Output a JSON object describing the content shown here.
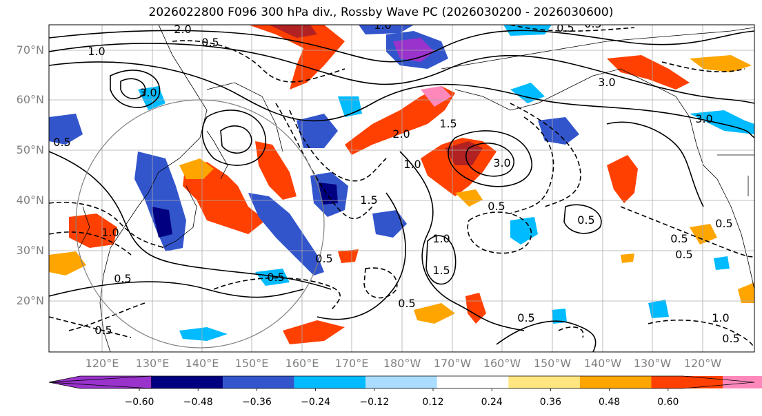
{
  "title": "2026022800 F096 300 hPa div., Rossby Wave PC (2026030200 - 2026030600)",
  "lat_labels": [
    "70°N",
    "60°N",
    "50°N",
    "40°N",
    "30°N",
    "20°N"
  ],
  "lon_labels": [
    "120°E",
    "130°E",
    "140°E",
    "150°E",
    "160°E",
    "170°E",
    "180°W",
    "170°W",
    "160°W",
    "150°W",
    "140°W",
    "130°W",
    "120°W"
  ],
  "colorbar": {
    "ticks": [
      "−0.60",
      "−0.48",
      "−0.36",
      "−0.24",
      "−0.12",
      "0.12",
      "0.24",
      "0.36",
      "0.48",
      "0.60"
    ],
    "colors": [
      "#9933cc",
      "#000080",
      "#3355cc",
      "#00bbff",
      "#aaddff",
      "#ffffff",
      "#ffe680",
      "#ffa500",
      "#ff4000",
      "#b22222",
      "#ff88bb"
    ]
  },
  "contour_labels": [
    {
      "text": "1.0"
    },
    {
      "text": "2.0"
    },
    {
      "text": "0.5"
    },
    {
      "text": "3.0"
    },
    {
      "text": "1.0"
    },
    {
      "text": "0.5"
    },
    {
      "text": "1.5"
    },
    {
      "text": "2.0"
    },
    {
      "text": "3.0"
    },
    {
      "text": "1.0"
    },
    {
      "text": "1.5"
    },
    {
      "text": "0.5"
    },
    {
      "text": "0.5"
    },
    {
      "text": "0.5"
    },
    {
      "text": "1.0"
    },
    {
      "text": "1.5"
    },
    {
      "text": "0.5"
    },
    {
      "text": "0.5"
    },
    {
      "text": "0.5"
    },
    {
      "text": "0.5"
    },
    {
      "text": "1.0"
    },
    {
      "text": "3.0"
    },
    {
      "text": "0.5"
    },
    {
      "text": "0.5"
    },
    {
      "text": "0.5"
    },
    {
      "text": "0.5"
    },
    {
      "text": "3.0"
    },
    {
      "text": "0.5"
    },
    {
      "text": "1.0"
    },
    {
      "text": "0.5"
    },
    {
      "text": "0.5"
    }
  ]
}
